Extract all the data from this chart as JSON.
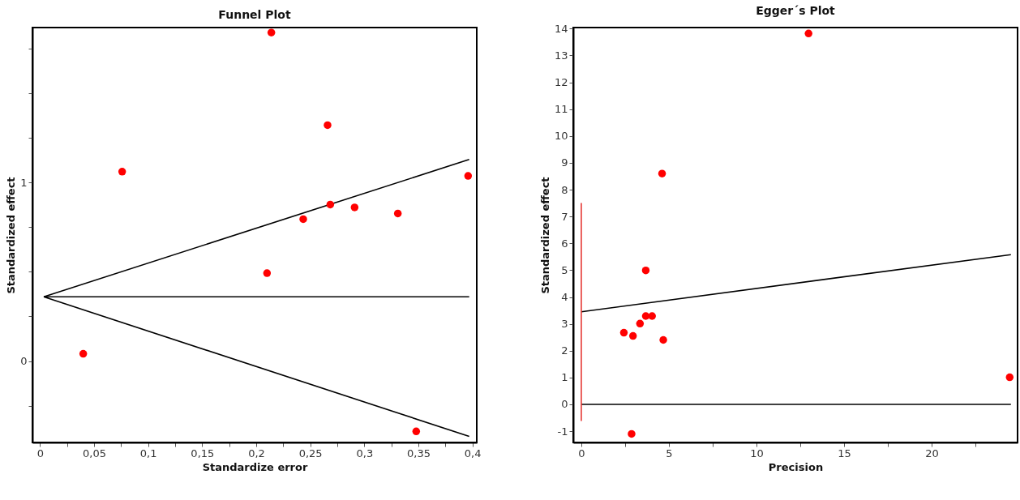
{
  "chart_data": [
    {
      "type": "scatter",
      "title": "Funnel Plot",
      "xlabel": "Standardize error",
      "ylabel": "Standardized effect",
      "xlim": [
        -0.007,
        0.404
      ],
      "ylim": [
        -0.455,
        1.866
      ],
      "xticks": [
        0,
        {
          "value": 0.025,
          "label": null
        },
        {
          "value": 0.05,
          "label": "0,05"
        },
        {
          "value": 0.075,
          "label": null
        },
        {
          "value": 0.1,
          "label": "0,1"
        },
        {
          "value": 0.125,
          "label": null
        },
        {
          "value": 0.15,
          "label": "0,15"
        },
        {
          "value": 0.175,
          "label": null
        },
        {
          "value": 0.2,
          "label": "0,2"
        },
        {
          "value": 0.225,
          "label": null
        },
        {
          "value": 0.25,
          "label": "0,25"
        },
        {
          "value": 0.275,
          "label": null
        },
        {
          "value": 0.3,
          "label": "0,3"
        },
        {
          "value": 0.325,
          "label": null
        },
        {
          "value": 0.35,
          "label": "0,35"
        },
        {
          "value": 0.375,
          "label": null
        },
        {
          "value": 0.4,
          "label": "0,4"
        }
      ],
      "yticks": [
        {
          "value": -0.25,
          "label": null
        },
        0,
        {
          "value": 0.25,
          "label": null
        },
        {
          "value": 0.5,
          "label": null
        },
        {
          "value": 0.75,
          "label": null
        },
        1,
        {
          "value": 1.25,
          "label": null
        },
        {
          "value": 1.5,
          "label": null
        },
        {
          "value": 1.75,
          "label": null
        }
      ],
      "series": [
        {
          "type": "line",
          "color": "#000000",
          "x": [
            0.0035,
            0.397
          ],
          "values": [
            0.36,
            1.128
          ]
        },
        {
          "type": "line",
          "color": "#000000",
          "x": [
            0.0035,
            0.397
          ],
          "values": [
            0.36,
            0.36
          ]
        },
        {
          "type": "line",
          "color": "#000000",
          "x": [
            0.0035,
            0.397
          ],
          "values": [
            0.36,
            -0.421
          ]
        },
        {
          "marker": "circle",
          "color": "#ff0000",
          "x": [
            0.214,
            0.266,
            0.076,
            0.396,
            0.2685,
            0.291,
            0.2435,
            0.331,
            0.21,
            0.04,
            0.348
          ],
          "values": [
            1.838,
            1.32,
            1.06,
            1.036,
            0.876,
            0.86,
            0.794,
            0.826,
            0.492,
            0.041,
            -0.393
          ]
        }
      ]
    },
    {
      "type": "scatter",
      "title": "Egger´s Plot",
      "xlabel": "Precision",
      "ylabel": "Standardized effect",
      "xlim": [
        -0.46,
        24.9
      ],
      "ylim": [
        -1.42,
        14.04
      ],
      "xticks": [
        0,
        {
          "value": 2.5,
          "label": null
        },
        5,
        {
          "value": 7.5,
          "label": null
        },
        10,
        {
          "value": 12.5,
          "label": null
        },
        15,
        {
          "value": 17.5,
          "label": null
        },
        20,
        {
          "value": 22.5,
          "label": null
        }
      ],
      "yticks": [
        -1,
        0,
        1,
        2,
        3,
        4,
        5,
        6,
        7,
        8,
        9,
        10,
        11,
        12,
        13,
        14
      ],
      "series": [
        {
          "type": "line",
          "color": "#000000",
          "x": [
            0,
            24.52
          ],
          "values": [
            3.45,
            5.58
          ]
        },
        {
          "type": "line",
          "color": "#000000",
          "x": [
            0,
            24.52
          ],
          "values": [
            0,
            0
          ]
        },
        {
          "type": "line",
          "color": "#e53935",
          "x": [
            0,
            0
          ],
          "values": [
            -0.62,
            7.5
          ]
        },
        {
          "marker": "circle",
          "color": "#ff0000",
          "x": [
            12.97,
            4.61,
            3.68,
            3.68,
            4.04,
            3.35,
            2.43,
            2.95,
            4.68,
            24.45,
            2.87
          ],
          "values": [
            13.82,
            8.6,
            4.99,
            3.29,
            3.29,
            3.01,
            2.67,
            2.55,
            2.4,
            1.01,
            -1.1
          ]
        }
      ]
    }
  ]
}
